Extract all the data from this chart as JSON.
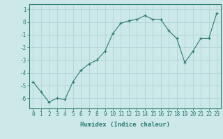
{
  "x": [
    0,
    1,
    2,
    3,
    4,
    5,
    6,
    7,
    8,
    9,
    10,
    11,
    12,
    13,
    14,
    15,
    16,
    17,
    18,
    19,
    20,
    21,
    22,
    23
  ],
  "y": [
    -4.7,
    -5.5,
    -6.3,
    -6.0,
    -6.1,
    -4.7,
    -3.8,
    -3.3,
    -3.0,
    -2.3,
    -0.9,
    -0.1,
    0.1,
    0.2,
    0.5,
    0.2,
    0.2,
    -0.7,
    -1.3,
    -3.2,
    -2.3,
    -1.3,
    -1.3,
    0.7
  ],
  "xlabel": "Humidex (Indice chaleur)",
  "ylim": [
    -6.8,
    1.4
  ],
  "xlim": [
    -0.5,
    23.5
  ],
  "yticks": [
    1,
    0,
    -1,
    -2,
    -3,
    -4,
    -5,
    -6
  ],
  "ytick_labels": [
    "1",
    "0",
    "-1",
    "-2",
    "-3",
    "-4",
    "-5",
    "-6"
  ],
  "xticks": [
    0,
    1,
    2,
    3,
    4,
    5,
    6,
    7,
    8,
    9,
    10,
    11,
    12,
    13,
    14,
    15,
    16,
    17,
    18,
    19,
    20,
    21,
    22,
    23
  ],
  "xtick_labels": [
    "0",
    "1",
    "2",
    "3",
    "4",
    "5",
    "6",
    "7",
    "8",
    "9",
    "10",
    "11",
    "12",
    "13",
    "14",
    "15",
    "16",
    "17",
    "18",
    "19",
    "20",
    "21",
    "22",
    "23"
  ],
  "line_color": "#2e7d6e",
  "marker": "+",
  "bg_color": "#cce8e8",
  "grid_color": "#b0d4d4",
  "tick_label_fontsize": 5.5,
  "xlabel_fontsize": 6.5
}
